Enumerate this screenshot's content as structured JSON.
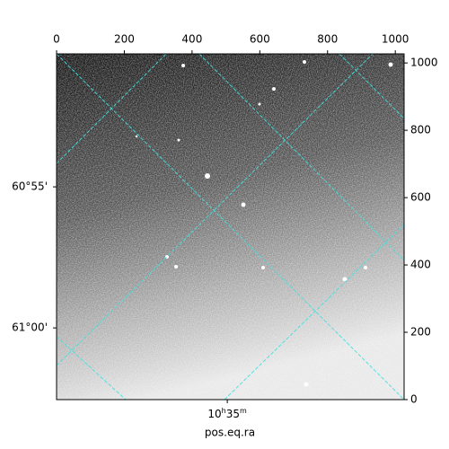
{
  "chart_data": {
    "type": "image",
    "xlabel": "pos.eq.ra",
    "xlim": [
      0,
      1026
    ],
    "ylim": [
      0,
      1027
    ],
    "xticks": [
      0,
      200,
      400,
      600,
      800,
      1000
    ],
    "yticks": [
      0,
      200,
      400,
      600,
      800,
      1000
    ],
    "world_xticks": [
      {
        "value": 504,
        "label": "10h35m"
      }
    ],
    "world_yticks": [
      {
        "value": 632,
        "label": "60°55'"
      },
      {
        "value": 213,
        "label": "61°00'"
      }
    ]
  }
}
